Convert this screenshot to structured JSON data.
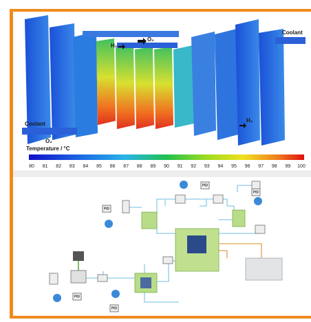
{
  "stack": {
    "coolant_in": "Coolant",
    "coolant_out": "Coolant",
    "o2_out": "O₂",
    "h2_in": "H₂",
    "o2_in": "O₂",
    "h2_out": "H₂"
  },
  "colorbar": {
    "title": "Temperature / °C",
    "ticks": [
      80,
      81,
      82,
      83,
      84,
      85,
      86,
      87,
      88,
      89,
      90,
      91,
      92,
      93,
      94,
      95,
      96,
      97,
      98,
      99,
      100
    ]
  },
  "system": {
    "controllers": [
      "PID",
      "PID",
      "PID",
      "PID",
      "PID"
    ]
  }
}
